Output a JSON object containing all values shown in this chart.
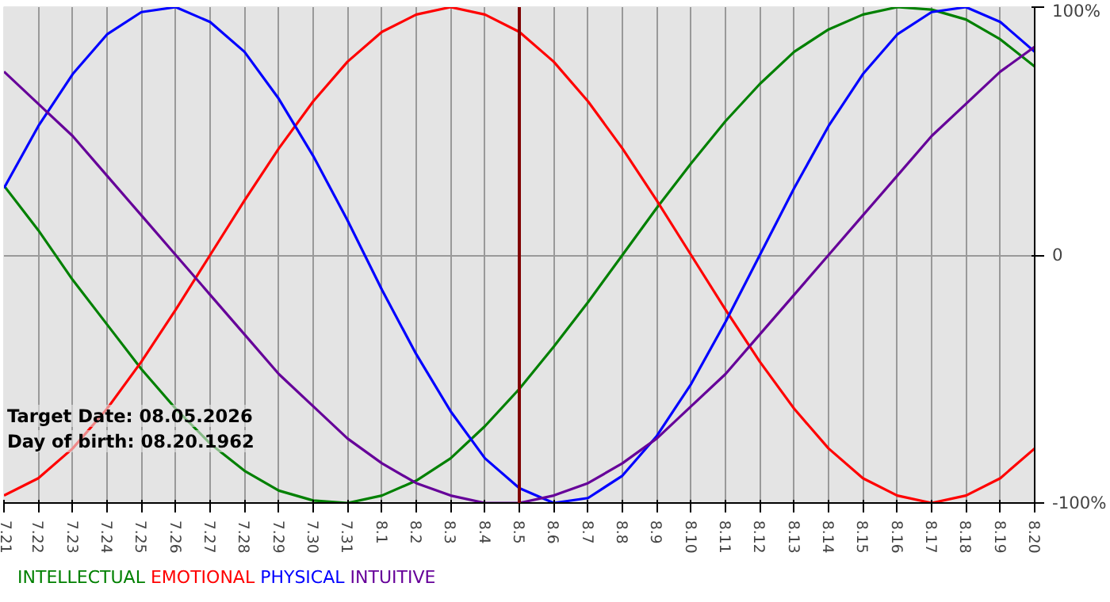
{
  "chart_data": {
    "type": "line",
    "categories": [
      "7.21",
      "7.22",
      "7.23",
      "7.24",
      "7.25",
      "7.26",
      "7.27",
      "7.28",
      "7.29",
      "7.30",
      "7.31",
      "8.1",
      "8.2",
      "8.3",
      "8.4",
      "8.5",
      "8.6",
      "8.7",
      "8.8",
      "8.9",
      "8.10",
      "8.11",
      "8.12",
      "8.13",
      "8.14",
      "8.15",
      "8.16",
      "8.17",
      "8.18",
      "8.19",
      "8.20"
    ],
    "series": [
      {
        "name": "INTELLECTUAL",
        "color": "#008000",
        "values": [
          28,
          10,
          -10,
          -28,
          -46,
          -62,
          -76,
          -87,
          -95,
          -99,
          -100,
          -97,
          -91,
          -82,
          -69,
          -54,
          -37,
          -19,
          0,
          19,
          37,
          54,
          69,
          82,
          91,
          97,
          100,
          99,
          95,
          87,
          76
        ]
      },
      {
        "name": "EMOTIONAL",
        "color": "#ff0000",
        "values": [
          -97,
          -90,
          -78,
          -62,
          -43,
          -22,
          0,
          22,
          43,
          62,
          78,
          90,
          97,
          100,
          97,
          90,
          78,
          62,
          43,
          22,
          0,
          -22,
          -43,
          -62,
          -78,
          -90,
          -97,
          -100,
          -97,
          -90,
          -78
        ]
      },
      {
        "name": "PHYSICAL",
        "color": "#0000ff",
        "values": [
          27,
          52,
          73,
          89,
          98,
          100,
          94,
          82,
          63,
          40,
          14,
          -14,
          -40,
          -63,
          -82,
          -94,
          -100,
          -98,
          -89,
          -73,
          -52,
          -27,
          0,
          27,
          52,
          73,
          89,
          98,
          100,
          94,
          82
        ]
      },
      {
        "name": "INTUITIVE",
        "color": "#660099",
        "values": [
          74,
          61,
          48,
          32,
          16,
          0,
          -16,
          -32,
          -48,
          -61,
          -74,
          -84,
          -92,
          -97,
          -100,
          -100,
          -97,
          -92,
          -84,
          -74,
          -61,
          -48,
          -32,
          -16,
          0,
          16,
          32,
          48,
          61,
          74,
          84
        ]
      }
    ],
    "ylim": [
      -100,
      100
    ],
    "yticks": [
      {
        "value": 100,
        "label": "100%"
      },
      0,
      {
        "value": -100,
        "label": "-100%"
      }
    ],
    "grid": true,
    "legend": "bottom left",
    "ref_lines": [
      {
        "axis": "x",
        "value": "8.5",
        "color": "#800000"
      }
    ],
    "annotations": [
      "Target Date: 08.05.2026",
      "Day of birth: 08.20.1962"
    ],
    "line_style": "solid",
    "marker": "none"
  }
}
